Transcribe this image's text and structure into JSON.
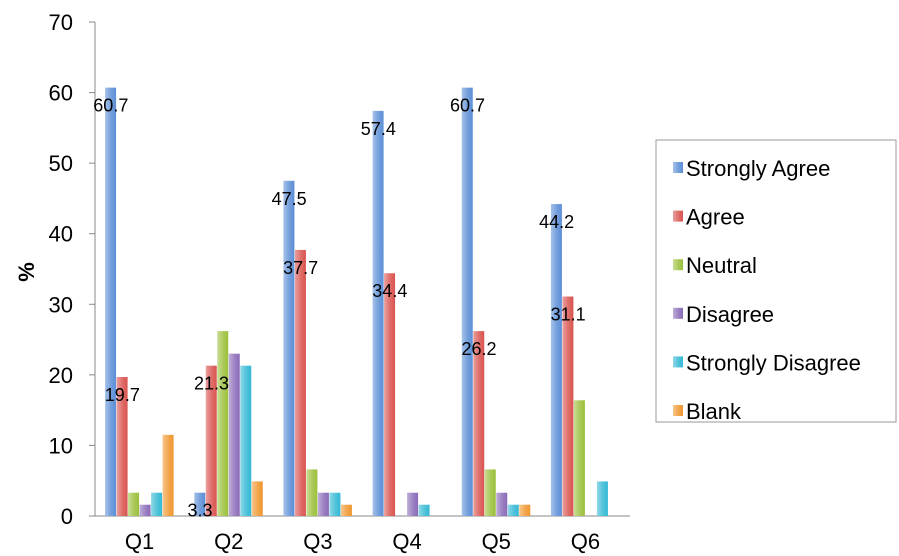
{
  "chart_data": {
    "type": "bar",
    "title": "",
    "xlabel": "",
    "ylabel": "%",
    "ylim": [
      0,
      70
    ],
    "yticks": [
      0,
      10,
      20,
      30,
      40,
      50,
      60,
      70
    ],
    "categories": [
      "Q1",
      "Q2",
      "Q3",
      "Q4",
      "Q5",
      "Q6"
    ],
    "series": [
      {
        "name": "Strongly Agree",
        "color": "#5b8ed6",
        "values": [
          60.7,
          3.3,
          47.5,
          57.4,
          60.7,
          44.2
        ]
      },
      {
        "name": "Agree",
        "color": "#d9534f",
        "values": [
          19.7,
          21.3,
          37.7,
          34.4,
          26.2,
          31.1
        ]
      },
      {
        "name": "Neutral",
        "color": "#9bc03c",
        "values": [
          3.3,
          26.2,
          6.6,
          0,
          6.6,
          16.4
        ]
      },
      {
        "name": "Disagree",
        "color": "#8a6bb8",
        "values": [
          1.6,
          23.0,
          3.3,
          3.3,
          3.3,
          0
        ]
      },
      {
        "name": "Strongly Disagree",
        "color": "#33b8d4",
        "values": [
          3.3,
          21.3,
          3.3,
          1.6,
          1.6,
          4.9
        ]
      },
      {
        "name": "Blank",
        "color": "#f0962e",
        "values": [
          11.5,
          4.9,
          1.6,
          0,
          1.6,
          0
        ]
      }
    ],
    "data_labels": [
      {
        "category": "Q1",
        "series": "Strongly Agree",
        "text": "60.7"
      },
      {
        "category": "Q1",
        "series": "Agree",
        "text": "19.7"
      },
      {
        "category": "Q2",
        "series": "Strongly Agree",
        "text": "3.3"
      },
      {
        "category": "Q2",
        "series": "Agree",
        "text": "21.3"
      },
      {
        "category": "Q3",
        "series": "Strongly Agree",
        "text": "47.5"
      },
      {
        "category": "Q3",
        "series": "Agree",
        "text": "37.7"
      },
      {
        "category": "Q4",
        "series": "Strongly Agree",
        "text": "57.4"
      },
      {
        "category": "Q4",
        "series": "Agree",
        "text": "34.4"
      },
      {
        "category": "Q5",
        "series": "Strongly Agree",
        "text": "60.7"
      },
      {
        "category": "Q5",
        "series": "Agree",
        "text": "26.2"
      },
      {
        "category": "Q6",
        "series": "Strongly Agree",
        "text": "44.2"
      },
      {
        "category": "Q6",
        "series": "Agree",
        "text": "31.1"
      }
    ],
    "legend_position": "right",
    "grid": false
  }
}
